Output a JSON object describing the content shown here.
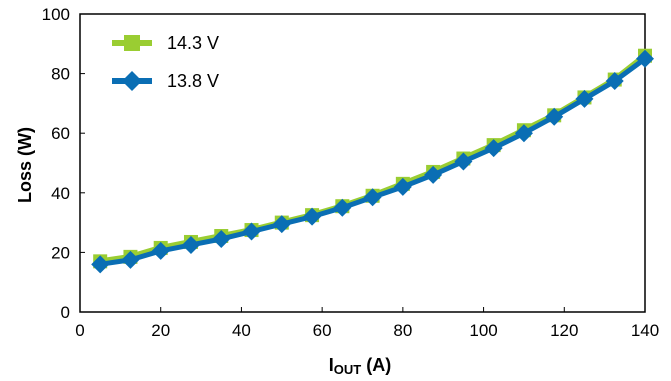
{
  "chart_data": {
    "type": "line",
    "xlabel": {
      "main": "I",
      "sub": "OUT",
      "rest": " (A)"
    },
    "ylabel": "Loss (W)",
    "xlim": [
      0,
      140
    ],
    "ylim": [
      0,
      100
    ],
    "xticks": [
      "0",
      "20",
      "40",
      "60",
      "80",
      "100",
      "120",
      "140"
    ],
    "yticks": [
      "0",
      "20",
      "40",
      "60",
      "80",
      "100"
    ],
    "grid": false,
    "legend_position": "top-left",
    "series": [
      {
        "name": "14.3 V",
        "color": "#9ACD32",
        "marker": "square",
        "x": [
          5,
          12.5,
          20,
          27.5,
          35,
          42.5,
          50,
          57.5,
          65,
          72.5,
          80,
          87.5,
          95,
          102.5,
          110,
          117.5,
          125,
          132.5,
          140
        ],
        "y": [
          17,
          18.5,
          21.5,
          23.5,
          25.5,
          27.5,
          30,
          32.5,
          35.5,
          39,
          43,
          47,
          51.5,
          56,
          61,
          66,
          72,
          78,
          86
        ]
      },
      {
        "name": "13.8 V",
        "color": "#0A6EB4",
        "marker": "diamond",
        "x": [
          5,
          12.5,
          20,
          27.5,
          35,
          42.5,
          50,
          57.5,
          65,
          72.5,
          80,
          87.5,
          95,
          102.5,
          110,
          117.5,
          125,
          132.5,
          140
        ],
        "y": [
          16,
          17.5,
          20.5,
          22.5,
          24.5,
          27,
          29.5,
          32,
          35,
          38.5,
          42,
          46,
          50.5,
          55,
          60,
          65.5,
          71.5,
          77.5,
          85
        ]
      }
    ]
  }
}
